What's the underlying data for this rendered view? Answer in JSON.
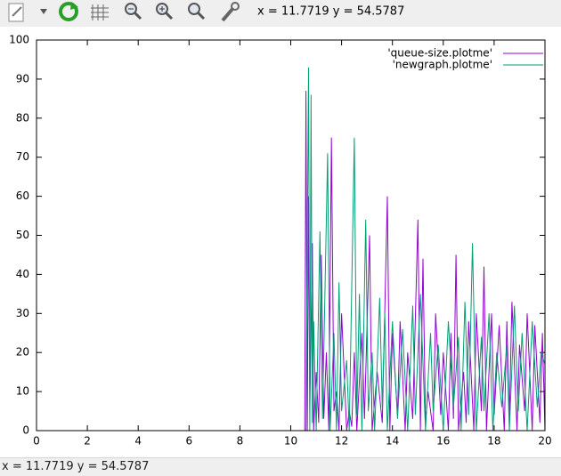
{
  "toolbar": {
    "coords": "x = 11.7719 y = 54.5787"
  },
  "status_bar": {
    "text": "x = 11.7719 y = 54.5787"
  },
  "chart_data": {
    "type": "line",
    "xlim": [
      0,
      20
    ],
    "xticks": [
      0,
      2,
      4,
      6,
      8,
      10,
      12,
      14,
      16,
      18,
      20
    ],
    "ylim": [
      0,
      100
    ],
    "yticks": [
      0,
      10,
      20,
      30,
      40,
      50,
      60,
      70,
      80,
      90,
      100
    ],
    "grid": false,
    "legend": "top right",
    "series": [
      {
        "name": "'queue-size.plotme'",
        "color": "#9400d3",
        "x": [
          0,
          10.55,
          10.6,
          10.65,
          10.7,
          10.75,
          10.85,
          10.9,
          11.0,
          11.1,
          11.2,
          11.3,
          11.4,
          11.5,
          11.6,
          11.7,
          11.8,
          11.9,
          12.0,
          12.2,
          12.3,
          12.4,
          12.5,
          12.6,
          12.8,
          12.9,
          13.1,
          13.2,
          13.4,
          13.6,
          13.8,
          13.9,
          14.0,
          14.2,
          14.3,
          14.5,
          14.6,
          14.8,
          15.0,
          15.1,
          15.2,
          15.3,
          15.4,
          15.6,
          15.7,
          15.9,
          16.0,
          16.2,
          16.3,
          16.4,
          16.5,
          16.6,
          16.8,
          16.9,
          17.0,
          17.2,
          17.3,
          17.5,
          17.6,
          17.7,
          17.9,
          18.0,
          18.2,
          18.4,
          18.5,
          18.6,
          18.7,
          18.9,
          19.0,
          19.2,
          19.3,
          19.5,
          19.6,
          19.8,
          19.9,
          20.0
        ],
        "values": [
          0,
          0,
          87,
          0,
          60,
          5,
          48,
          0,
          15,
          2,
          45,
          3,
          20,
          0,
          75,
          5,
          10,
          0,
          30,
          0,
          5,
          1,
          20,
          0,
          25,
          3,
          50,
          0,
          15,
          2,
          60,
          0,
          25,
          4,
          28,
          0,
          20,
          3,
          54,
          0,
          44,
          2,
          10,
          0,
          30,
          4,
          20,
          0,
          25,
          3,
          45,
          0,
          15,
          2,
          28,
          0,
          30,
          5,
          42,
          0,
          30,
          4,
          27,
          0,
          28,
          3,
          33,
          0,
          22,
          5,
          30,
          0,
          27,
          2,
          25,
          0
        ]
      },
      {
        "name": "'newgraph.plotme'",
        "color": "#009e73",
        "x": [
          0,
          10.6,
          10.7,
          10.75,
          10.8,
          10.85,
          10.9,
          11.0,
          11.15,
          11.25,
          11.45,
          11.55,
          11.7,
          11.8,
          11.9,
          12.0,
          12.2,
          12.3,
          12.5,
          12.6,
          12.7,
          12.8,
          12.95,
          13.05,
          13.2,
          13.3,
          13.5,
          13.6,
          13.7,
          13.8,
          14.0,
          14.2,
          14.4,
          14.6,
          14.8,
          14.9,
          15.1,
          15.3,
          15.5,
          15.6,
          15.8,
          16.0,
          16.2,
          16.4,
          16.6,
          16.7,
          16.85,
          17.0,
          17.15,
          17.3,
          17.5,
          17.6,
          17.8,
          17.95,
          18.1,
          18.3,
          18.5,
          18.6,
          18.8,
          18.95,
          19.1,
          19.3,
          19.5,
          19.7,
          19.85,
          20.0
        ],
        "values": [
          0,
          0,
          93,
          0,
          86,
          2,
          28,
          0,
          51,
          3,
          71,
          0,
          25,
          0,
          38,
          5,
          18,
          0,
          75,
          4,
          35,
          0,
          54,
          5,
          20,
          0,
          34,
          6,
          30,
          0,
          28,
          3,
          26,
          0,
          32,
          4,
          35,
          0,
          25,
          5,
          22,
          0,
          28,
          6,
          24,
          0,
          33,
          4,
          48,
          0,
          24,
          5,
          30,
          0,
          20,
          6,
          22,
          0,
          32,
          5,
          25,
          0,
          28,
          6,
          20,
          17
        ]
      }
    ]
  }
}
